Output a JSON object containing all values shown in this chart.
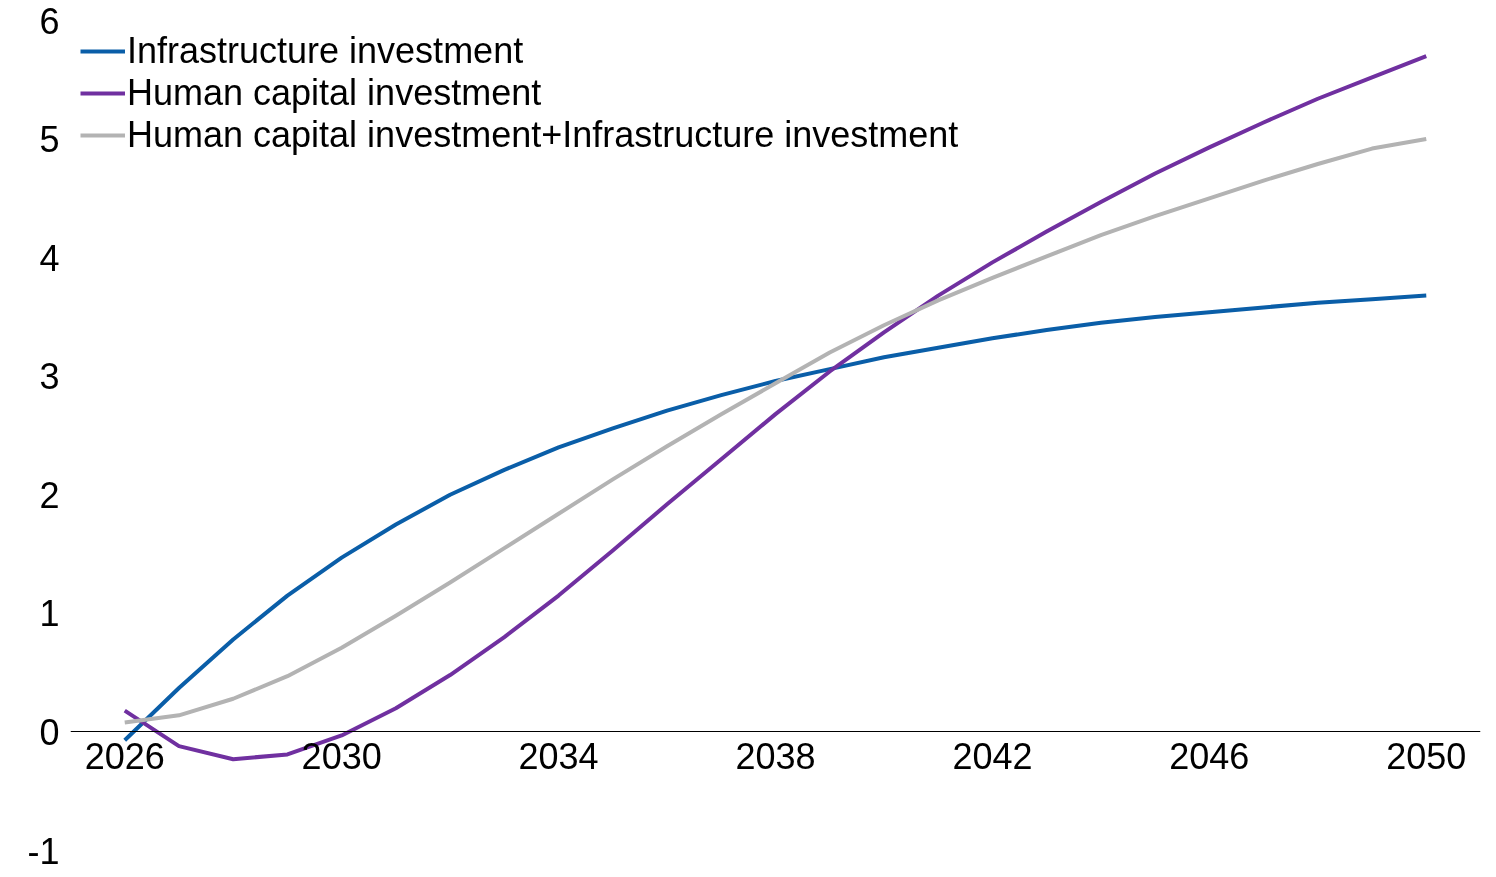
{
  "chart_data": {
    "type": "line",
    "x": [
      2026,
      2027,
      2028,
      2029,
      2030,
      2031,
      2032,
      2033,
      2034,
      2035,
      2036,
      2037,
      2038,
      2039,
      2040,
      2041,
      2042,
      2043,
      2044,
      2045,
      2046,
      2047,
      2048,
      2049,
      2050
    ],
    "series": [
      {
        "name": "Infrastructure investment",
        "color": "#0a5ea8",
        "values": [
          -0.07,
          0.37,
          0.78,
          1.15,
          1.47,
          1.75,
          2.0,
          2.21,
          2.4,
          2.56,
          2.71,
          2.84,
          2.96,
          3.06,
          3.16,
          3.24,
          3.32,
          3.39,
          3.45,
          3.5,
          3.54,
          3.58,
          3.62,
          3.65,
          3.68
        ]
      },
      {
        "name": "Human capital investment",
        "color": "#7030a0",
        "values": [
          0.18,
          -0.12,
          -0.23,
          -0.19,
          -0.03,
          0.2,
          0.48,
          0.8,
          1.15,
          1.53,
          1.92,
          2.3,
          2.68,
          3.04,
          3.37,
          3.68,
          3.96,
          4.22,
          4.47,
          4.71,
          4.93,
          5.14,
          5.34,
          5.52,
          5.7
        ]
      },
      {
        "name": "Human capital investment+Infrastructure investment",
        "color": "#b3b3b3",
        "values": [
          0.08,
          0.14,
          0.28,
          0.47,
          0.71,
          0.98,
          1.26,
          1.55,
          1.84,
          2.13,
          2.41,
          2.68,
          2.94,
          3.2,
          3.43,
          3.64,
          3.83,
          4.01,
          4.19,
          4.35,
          4.5,
          4.65,
          4.79,
          4.92,
          5.0
        ]
      }
    ],
    "xlim": [
      2025,
      2051
    ],
    "xticks": [
      2026,
      2030,
      2034,
      2038,
      2042,
      2046,
      2050
    ],
    "ylim": [
      -1,
      6
    ],
    "yticks": [
      -1,
      0,
      1,
      2,
      3,
      4,
      5,
      6
    ],
    "grid": false,
    "legend": "top left",
    "marker": "none",
    "line_style": "solid"
  }
}
